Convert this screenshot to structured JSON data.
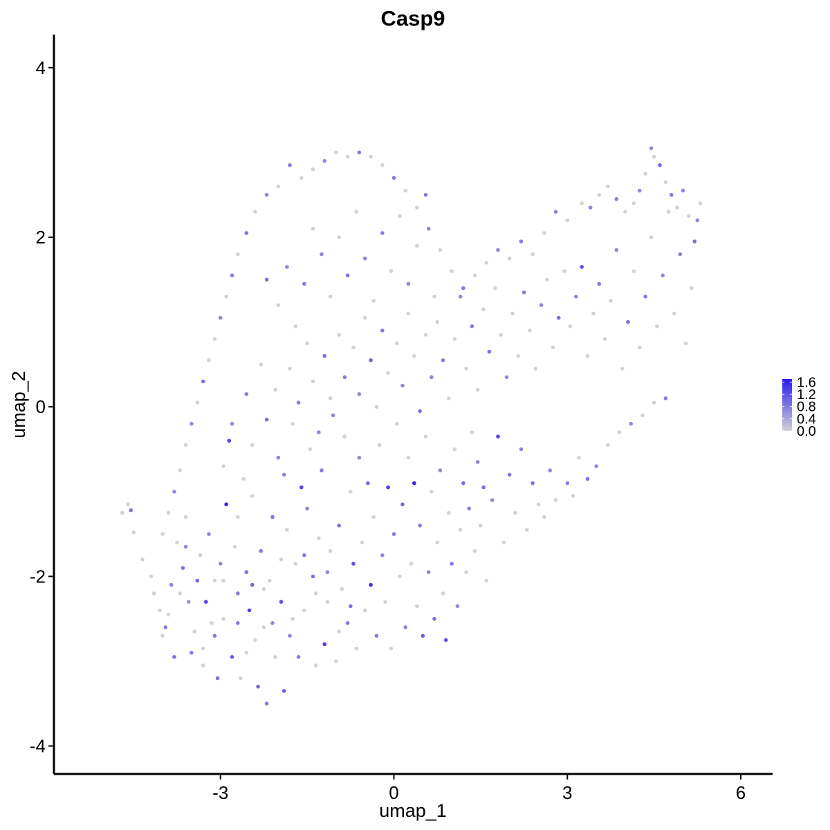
{
  "chart_data": {
    "type": "scatter",
    "title": "Casp9",
    "xlabel": "umap_1",
    "ylabel": "umap_2",
    "xlim": [
      -5.88,
      6.55
    ],
    "ylim": [
      -4.33,
      4.39
    ],
    "x_ticks": [
      -3,
      0,
      3,
      6
    ],
    "x_tick_labels": [
      "-3",
      "0",
      "3",
      "6"
    ],
    "y_ticks": [
      -4,
      -2,
      0,
      2,
      4
    ],
    "y_tick_labels": [
      "-4",
      "-2",
      "0",
      "2",
      "4"
    ],
    "grid": false,
    "legend": {
      "placement": "right",
      "type": "colorbar",
      "ticks": [
        0.0,
        0.4,
        0.8,
        1.2,
        1.6
      ],
      "labels": [
        "0.0",
        "0.4",
        "0.8",
        "1.2",
        "1.6"
      ],
      "range": [
        0.0,
        1.7
      ]
    },
    "colors": {
      "low": "#d3d3d3",
      "high": "#2a1bf0"
    },
    "points_xy_expression": [
      [
        -4.7,
        -1.25,
        0
      ],
      [
        -4.6,
        -1.15,
        0
      ],
      [
        -4.55,
        -1.22,
        0.9
      ],
      [
        -4.5,
        -1.48,
        0
      ],
      [
        -4.35,
        -1.8,
        0
      ],
      [
        -4.15,
        -2.2,
        0
      ],
      [
        -4.05,
        -2.4,
        0
      ],
      [
        -3.95,
        -2.6,
        0.8
      ],
      [
        -3.9,
        -2.45,
        0
      ],
      [
        -3.85,
        -2.1,
        0.7
      ],
      [
        -3.75,
        -1.6,
        0
      ],
      [
        -3.65,
        -1.9,
        0.9
      ],
      [
        -3.6,
        -1.3,
        0
      ],
      [
        -3.55,
        -2.3,
        0.6
      ],
      [
        -3.5,
        -2.9,
        0.8
      ],
      [
        -3.45,
        -2.65,
        0
      ],
      [
        -3.4,
        -2.05,
        1.0
      ],
      [
        -3.35,
        -1.75,
        0
      ],
      [
        -3.3,
        -3.05,
        0
      ],
      [
        -3.25,
        -2.3,
        1.3
      ],
      [
        -3.2,
        -1.5,
        0.7
      ],
      [
        -3.15,
        -2.55,
        0
      ],
      [
        -3.1,
        -2.05,
        0
      ],
      [
        -3.05,
        -3.2,
        0.9
      ],
      [
        -3.0,
        -1.85,
        0.7
      ],
      [
        -2.95,
        -2.5,
        0
      ],
      [
        -2.9,
        -1.15,
        1.6
      ],
      [
        -2.85,
        -0.4,
        1.3
      ],
      [
        -2.8,
        -2.95,
        1.1
      ],
      [
        -2.75,
        -1.65,
        0
      ],
      [
        -2.7,
        -2.2,
        0.8
      ],
      [
        -2.65,
        -3.2,
        0
      ],
      [
        -2.6,
        -0.85,
        0
      ],
      [
        -2.55,
        -1.95,
        0.9
      ],
      [
        -2.5,
        -2.4,
        1.3
      ],
      [
        -2.45,
        -1.05,
        0
      ],
      [
        -2.4,
        -2.75,
        0
      ],
      [
        -2.35,
        -3.3,
        1.0
      ],
      [
        -2.3,
        -1.7,
        0.8
      ],
      [
        -2.25,
        -2.6,
        0
      ],
      [
        -2.2,
        -3.5,
        0.8
      ],
      [
        -2.15,
        -2.05,
        0
      ],
      [
        -2.1,
        -1.3,
        0.9
      ],
      [
        -2.05,
        -2.95,
        0
      ],
      [
        -2.0,
        -0.6,
        0.7
      ],
      [
        -1.95,
        -2.3,
        1.2
      ],
      [
        -1.9,
        -3.35,
        1.1
      ],
      [
        -1.85,
        -1.45,
        0
      ],
      [
        -1.8,
        -2.7,
        0.7
      ],
      [
        -1.75,
        -0.2,
        0
      ],
      [
        -1.7,
        -1.85,
        0
      ],
      [
        -1.65,
        -2.95,
        0.8
      ],
      [
        -1.6,
        -0.95,
        1.3
      ],
      [
        -1.55,
        -2.4,
        0
      ],
      [
        -1.5,
        -1.2,
        0.7
      ],
      [
        -1.45,
        -0.5,
        0
      ],
      [
        -1.4,
        -2.0,
        0.9
      ],
      [
        -1.35,
        -3.05,
        0
      ],
      [
        -1.3,
        -1.55,
        0
      ],
      [
        -1.25,
        -0.75,
        0.8
      ],
      [
        -1.2,
        -2.8,
        1.4
      ],
      [
        -1.15,
        -2.3,
        0
      ],
      [
        -1.1,
        -1.7,
        0
      ],
      [
        -1.05,
        -0.1,
        0.7
      ],
      [
        -1.0,
        -3.0,
        0
      ],
      [
        -0.95,
        -1.4,
        0.9
      ],
      [
        -0.9,
        -2.15,
        0
      ],
      [
        -0.85,
        -0.35,
        0
      ],
      [
        -0.8,
        -2.55,
        0.8
      ],
      [
        -0.75,
        -1.0,
        0
      ],
      [
        -0.7,
        -1.85,
        1.2
      ],
      [
        -0.65,
        -2.85,
        0
      ],
      [
        -0.6,
        -0.6,
        0.7
      ],
      [
        -0.55,
        -1.6,
        0
      ],
      [
        -0.5,
        -2.4,
        0
      ],
      [
        -0.45,
        -0.9,
        1.0
      ],
      [
        -0.4,
        -2.1,
        1.5
      ],
      [
        -0.35,
        -1.3,
        0
      ],
      [
        -0.3,
        -2.7,
        0.8
      ],
      [
        -0.25,
        -0.45,
        0
      ],
      [
        -0.2,
        -1.75,
        0.7
      ],
      [
        -0.15,
        -2.3,
        0
      ],
      [
        -0.1,
        -0.95,
        1.4
      ],
      [
        -0.05,
        -2.85,
        0
      ],
      [
        0.0,
        -1.5,
        0.8
      ],
      [
        0.05,
        -0.2,
        0
      ],
      [
        0.1,
        -2.0,
        0
      ],
      [
        0.15,
        -1.15,
        1.0
      ],
      [
        0.2,
        -2.6,
        0.7
      ],
      [
        0.25,
        -0.6,
        0
      ],
      [
        0.3,
        -1.85,
        0
      ],
      [
        0.35,
        -0.9,
        1.6
      ],
      [
        0.4,
        -2.35,
        0
      ],
      [
        0.45,
        -1.4,
        0.8
      ],
      [
        0.5,
        -2.7,
        1.1
      ],
      [
        0.55,
        -0.35,
        0
      ],
      [
        0.6,
        -1.95,
        0.7
      ],
      [
        0.65,
        -1.0,
        0
      ],
      [
        0.7,
        -2.5,
        0.9
      ],
      [
        0.75,
        -1.6,
        0
      ],
      [
        0.8,
        -0.75,
        0.7
      ],
      [
        0.85,
        -2.2,
        0
      ],
      [
        0.9,
        -2.75,
        1.2
      ],
      [
        0.95,
        -1.25,
        0
      ],
      [
        1.0,
        -1.85,
        0.8
      ],
      [
        1.05,
        -0.5,
        0
      ],
      [
        1.1,
        -2.35,
        0.7
      ],
      [
        1.15,
        -1.45,
        0
      ],
      [
        1.2,
        -0.9,
        0.9
      ],
      [
        1.25,
        -1.95,
        0
      ],
      [
        1.3,
        -1.2,
        0.8
      ],
      [
        1.35,
        -0.3,
        0
      ],
      [
        1.4,
        -1.7,
        0
      ],
      [
        1.45,
        -0.65,
        0.7
      ],
      [
        1.5,
        -1.4,
        0
      ],
      [
        1.55,
        -0.95,
        0.9
      ],
      [
        1.6,
        -2.05,
        0
      ],
      [
        1.7,
        -1.1,
        0.7
      ],
      [
        1.8,
        -0.35,
        1.3
      ],
      [
        1.9,
        -1.6,
        0
      ],
      [
        2.0,
        -0.8,
        0.8
      ],
      [
        2.1,
        -1.25,
        0
      ],
      [
        2.2,
        -0.5,
        0.7
      ],
      [
        2.3,
        -1.45,
        0
      ],
      [
        2.4,
        -0.9,
        0.9
      ],
      [
        2.5,
        -1.15,
        0
      ],
      [
        2.6,
        -1.3,
        0
      ],
      [
        2.7,
        -0.75,
        0.7
      ],
      [
        2.8,
        -1.1,
        0
      ],
      [
        3.0,
        -0.9,
        0.8
      ],
      [
        3.1,
        -1.05,
        0
      ],
      [
        3.2,
        -0.6,
        0
      ],
      [
        3.35,
        -0.85,
        0.9
      ],
      [
        3.5,
        -0.7,
        0.7
      ],
      [
        3.7,
        -0.45,
        0
      ],
      [
        3.9,
        -0.3,
        0
      ],
      [
        4.1,
        -0.2,
        0.7
      ],
      [
        4.3,
        -0.1,
        0
      ],
      [
        4.5,
        0.05,
        0
      ],
      [
        4.7,
        0.1,
        0.8
      ],
      [
        -4.2,
        -2.0,
        0
      ],
      [
        -4.0,
        -2.7,
        0
      ],
      [
        -3.8,
        -2.95,
        0.9
      ],
      [
        -3.7,
        -2.2,
        0
      ],
      [
        -3.6,
        -1.65,
        0.7
      ],
      [
        -3.3,
        -2.85,
        0
      ],
      [
        -3.1,
        -2.7,
        0.8
      ],
      [
        -2.95,
        -2.05,
        0
      ],
      [
        -2.7,
        -2.55,
        0.8
      ],
      [
        -2.55,
        -2.9,
        0
      ],
      [
        -2.45,
        -2.1,
        1.0
      ],
      [
        -2.25,
        -2.15,
        0
      ],
      [
        -2.1,
        -2.55,
        0.7
      ],
      [
        -1.95,
        -1.8,
        0
      ],
      [
        -1.75,
        -2.5,
        0
      ],
      [
        -1.55,
        -1.75,
        0.8
      ],
      [
        -1.35,
        -2.2,
        0
      ],
      [
        -1.15,
        -1.95,
        0.7
      ],
      [
        -0.95,
        -2.65,
        0
      ],
      [
        -0.75,
        -2.35,
        0.9
      ],
      [
        -2.95,
        -0.7,
        0
      ],
      [
        -2.8,
        -0.2,
        0.7
      ],
      [
        -2.7,
        -1.3,
        0
      ],
      [
        -2.55,
        0.15,
        0.8
      ],
      [
        -2.45,
        -0.45,
        0
      ],
      [
        -2.3,
        0.5,
        0
      ],
      [
        -2.2,
        -0.15,
        0.9
      ],
      [
        -2.05,
        0.2,
        0
      ],
      [
        -1.9,
        -0.8,
        0.7
      ],
      [
        -1.8,
        0.45,
        0
      ],
      [
        -1.65,
        0.05,
        0.8
      ],
      [
        -1.5,
        0.75,
        0
      ],
      [
        -1.4,
        0.3,
        0
      ],
      [
        -1.3,
        -0.3,
        0.7
      ],
      [
        -1.2,
        0.6,
        0.9
      ],
      [
        -1.1,
        0.1,
        0
      ],
      [
        -0.95,
        0.85,
        0
      ],
      [
        -0.85,
        0.35,
        0.8
      ],
      [
        -0.7,
        0.7,
        0
      ],
      [
        -0.6,
        0.15,
        0.7
      ],
      [
        -0.5,
        1.05,
        0
      ],
      [
        -0.4,
        0.55,
        1.0
      ],
      [
        -0.3,
        0.0,
        0
      ],
      [
        -0.2,
        0.9,
        0.8
      ],
      [
        -0.1,
        0.4,
        0
      ],
      [
        0.05,
        0.75,
        0
      ],
      [
        0.15,
        0.25,
        0.7
      ],
      [
        0.25,
        1.1,
        0
      ],
      [
        0.35,
        0.6,
        0
      ],
      [
        0.45,
        -0.05,
        0.9
      ],
      [
        0.55,
        0.85,
        0
      ],
      [
        0.65,
        0.35,
        0.7
      ],
      [
        0.75,
        1.0,
        0
      ],
      [
        0.85,
        0.55,
        0.8
      ],
      [
        0.95,
        0.1,
        0
      ],
      [
        1.05,
        0.8,
        0
      ],
      [
        1.15,
        1.3,
        0.7
      ],
      [
        1.25,
        0.45,
        0
      ],
      [
        1.35,
        0.95,
        0.8
      ],
      [
        1.45,
        0.2,
        0
      ],
      [
        1.55,
        1.15,
        0
      ],
      [
        1.65,
        0.65,
        0.9
      ],
      [
        1.75,
        1.4,
        0
      ],
      [
        1.85,
        0.85,
        0
      ],
      [
        1.95,
        0.35,
        0.7
      ],
      [
        2.05,
        1.1,
        0
      ],
      [
        2.15,
        0.6,
        0
      ],
      [
        2.25,
        1.35,
        0.8
      ],
      [
        2.35,
        0.9,
        0
      ],
      [
        2.45,
        0.45,
        0
      ],
      [
        2.55,
        1.2,
        0.7
      ],
      [
        2.65,
        1.5,
        0
      ],
      [
        2.75,
        0.7,
        0
      ],
      [
        2.85,
        1.05,
        0.9
      ],
      [
        2.95,
        1.6,
        0
      ],
      [
        3.05,
        0.95,
        0
      ],
      [
        3.15,
        1.3,
        0.7
      ],
      [
        3.25,
        1.65,
        1.2
      ],
      [
        3.35,
        0.6,
        0
      ],
      [
        3.45,
        1.1,
        0
      ],
      [
        3.55,
        1.45,
        0.8
      ],
      [
        3.65,
        0.8,
        0
      ],
      [
        3.75,
        1.25,
        0
      ],
      [
        3.85,
        1.85,
        0.7
      ],
      [
        3.95,
        0.45,
        0
      ],
      [
        4.05,
        1.0,
        0.9
      ],
      [
        4.15,
        1.6,
        0
      ],
      [
        4.25,
        0.7,
        0
      ],
      [
        4.35,
        1.3,
        0.8
      ],
      [
        4.45,
        2.0,
        0
      ],
      [
        4.55,
        0.95,
        0
      ],
      [
        4.65,
        1.55,
        0.7
      ],
      [
        4.75,
        2.3,
        0
      ],
      [
        4.85,
        1.1,
        0
      ],
      [
        4.95,
        1.8,
        0.8
      ],
      [
        5.05,
        0.75,
        0
      ],
      [
        5.15,
        1.4,
        0
      ],
      [
        5.25,
        2.2,
        0.7
      ],
      [
        5.3,
        2.4,
        0
      ],
      [
        5.2,
        1.95,
        0.9
      ],
      [
        4.45,
        3.05,
        0.7
      ],
      [
        4.5,
        2.95,
        0
      ],
      [
        4.6,
        2.85,
        1.0
      ],
      [
        4.7,
        2.65,
        0
      ],
      [
        4.8,
        2.5,
        0.8
      ],
      [
        4.9,
        2.35,
        0
      ],
      [
        5.0,
        2.55,
        0.7
      ],
      [
        5.1,
        2.25,
        0
      ],
      [
        4.35,
        2.75,
        0
      ],
      [
        4.25,
        2.55,
        0.7
      ],
      [
        4.15,
        2.4,
        0
      ],
      [
        4.0,
        2.3,
        0
      ],
      [
        3.85,
        2.45,
        0.8
      ],
      [
        3.7,
        2.6,
        0
      ],
      [
        3.55,
        2.5,
        0
      ],
      [
        3.4,
        2.35,
        0.7
      ],
      [
        3.25,
        2.4,
        0
      ],
      [
        3.0,
        2.2,
        0
      ],
      [
        2.8,
        2.3,
        0.7
      ],
      [
        2.6,
        2.05,
        0
      ],
      [
        2.4,
        1.8,
        0
      ],
      [
        2.2,
        1.95,
        0.8
      ],
      [
        2.0,
        1.75,
        0
      ],
      [
        1.8,
        1.85,
        0.7
      ],
      [
        1.6,
        1.7,
        0
      ],
      [
        1.4,
        1.55,
        0
      ],
      [
        1.2,
        1.4,
        0.8
      ],
      [
        1.0,
        1.6,
        0
      ],
      [
        0.8,
        1.85,
        0
      ],
      [
        0.6,
        2.1,
        0.7
      ],
      [
        0.4,
        2.35,
        0
      ],
      [
        0.2,
        2.55,
        0
      ],
      [
        0.0,
        2.7,
        0.8
      ],
      [
        -0.2,
        2.85,
        0
      ],
      [
        -0.4,
        2.95,
        0
      ],
      [
        -0.6,
        3.0,
        0.8
      ],
      [
        -0.8,
        2.95,
        0
      ],
      [
        -1.0,
        3.0,
        0
      ],
      [
        -1.2,
        2.9,
        0.7
      ],
      [
        -1.4,
        2.8,
        0
      ],
      [
        -1.6,
        2.7,
        0
      ],
      [
        -1.8,
        2.85,
        0.8
      ],
      [
        -2.0,
        2.6,
        0
      ],
      [
        -2.2,
        2.5,
        0.7
      ],
      [
        -2.4,
        2.3,
        0
      ],
      [
        -2.55,
        2.05,
        0.9
      ],
      [
        -2.7,
        1.8,
        0
      ],
      [
        -2.8,
        1.55,
        0.8
      ],
      [
        -2.9,
        1.3,
        0
      ],
      [
        -3.0,
        1.05,
        0.7
      ],
      [
        -3.1,
        0.8,
        0
      ],
      [
        -3.2,
        0.55,
        0
      ],
      [
        -3.3,
        0.3,
        0.9
      ],
      [
        -3.4,
        0.05,
        0
      ],
      [
        -3.5,
        -0.2,
        0.7
      ],
      [
        -3.6,
        -0.45,
        0
      ],
      [
        -3.7,
        -0.75,
        0
      ],
      [
        -3.8,
        -1.0,
        0.7
      ],
      [
        -3.9,
        -1.25,
        0
      ],
      [
        -4.0,
        -1.5,
        0
      ],
      [
        -2.2,
        1.5,
        0.9
      ],
      [
        -2.0,
        1.2,
        0
      ],
      [
        -1.85,
        1.65,
        0.7
      ],
      [
        -1.7,
        0.95,
        0
      ],
      [
        -1.55,
        1.45,
        0.8
      ],
      [
        -1.4,
        2.1,
        0
      ],
      [
        -1.25,
        1.8,
        0.7
      ],
      [
        -1.1,
        1.3,
        0
      ],
      [
        -0.95,
        2.0,
        0
      ],
      [
        -0.8,
        1.55,
        0.9
      ],
      [
        -0.65,
        2.3,
        0
      ],
      [
        -0.5,
        1.75,
        0.7
      ],
      [
        -0.35,
        1.25,
        0
      ],
      [
        -0.2,
        2.05,
        0.8
      ],
      [
        -0.05,
        1.6,
        0
      ],
      [
        0.1,
        2.25,
        0
      ],
      [
        0.25,
        1.45,
        0.7
      ],
      [
        0.4,
        1.9,
        0
      ],
      [
        0.55,
        2.5,
        0.8
      ],
      [
        0.7,
        1.3,
        0
      ]
    ]
  }
}
